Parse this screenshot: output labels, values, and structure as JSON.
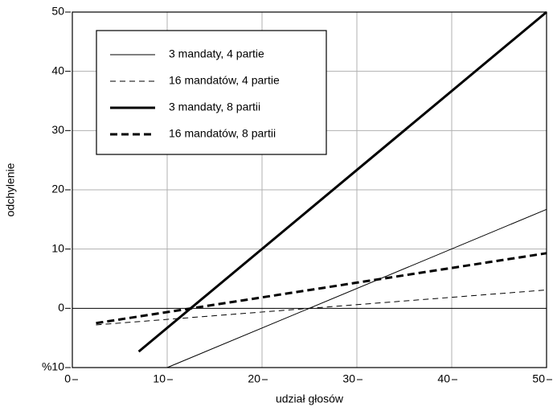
{
  "chart_data": {
    "type": "line",
    "xlabel": "udział głosów",
    "ylabel": "odchylenie",
    "xlim": [
      0,
      50
    ],
    "ylim": [
      -10,
      50
    ],
    "xticks": [
      0,
      10,
      20,
      30,
      40,
      50
    ],
    "yticks": [
      {
        "value": -10,
        "label": "%10"
      },
      0,
      10,
      20,
      30,
      40,
      50
    ],
    "grid": true,
    "legend": "upper left",
    "series": [
      {
        "name": "3 mandaty, 4 partie",
        "color": "#000000",
        "linewidth": 1,
        "linestyle": "solid",
        "x": [
          10,
          50
        ],
        "values": [
          -10,
          16.7
        ]
      },
      {
        "name": "16 mandatów, 4 partie",
        "color": "#000000",
        "linewidth": 1,
        "linestyle": "dashed",
        "x": [
          2.5,
          50
        ],
        "values": [
          -2.8,
          3.1
        ]
      },
      {
        "name": "3 mandaty, 8 partii",
        "color": "#000000",
        "linewidth": 3,
        "linestyle": "solid",
        "x": [
          7,
          50
        ],
        "values": [
          -7.3,
          50
        ]
      },
      {
        "name": "16 mandatów, 8 partii",
        "color": "#000000",
        "linewidth": 3,
        "linestyle": "dashed",
        "x": [
          2.5,
          50
        ],
        "values": [
          -2.5,
          9.3
        ]
      }
    ]
  }
}
